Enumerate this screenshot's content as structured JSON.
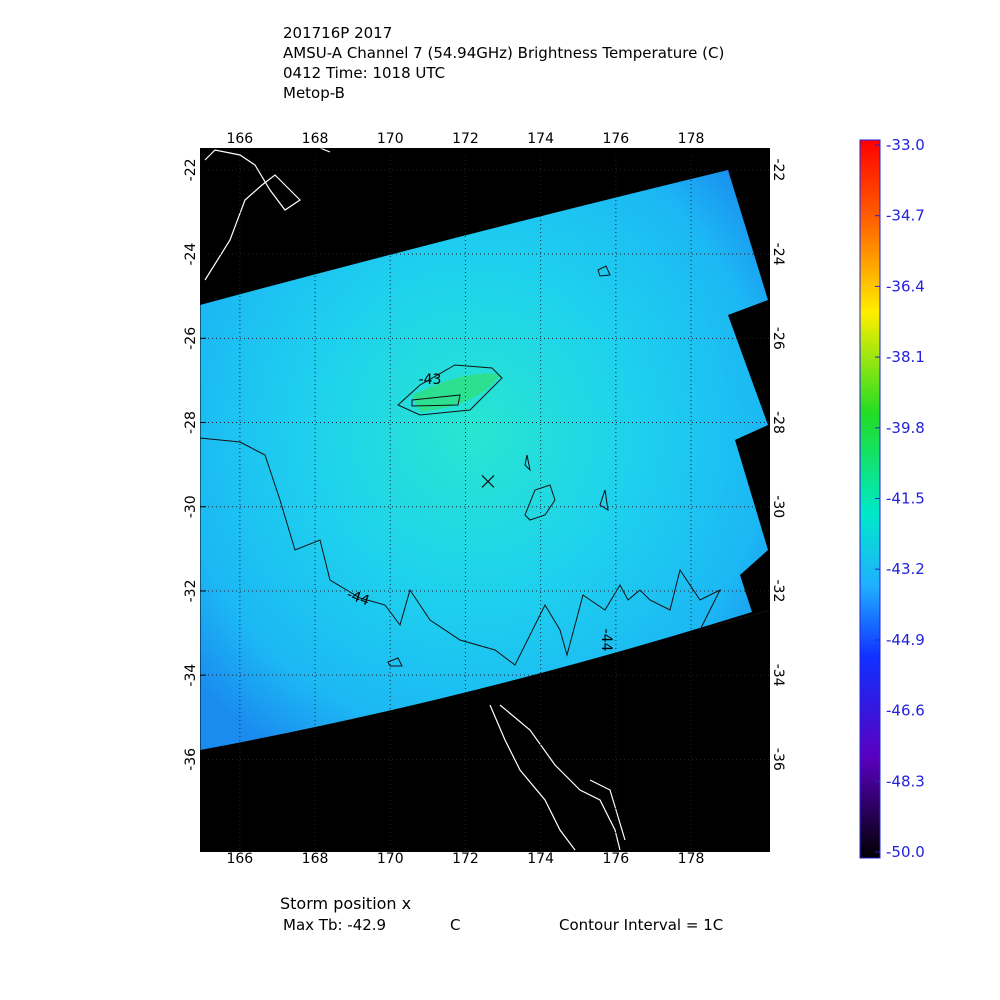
{
  "map": {
    "title_lines": [
      "201716P 2017",
      "AMSU-A Channel 7 (54.94GHz) Brightness Temperature (C)",
      "0412 Time: 1018 UTC",
      "Metop-B"
    ],
    "xlim": [
      164.94,
      180.1
    ],
    "ylim": [
      -38.2,
      -21.48
    ],
    "xticks": [
      166,
      168,
      170,
      172,
      174,
      176,
      178
    ],
    "yticks": [
      -22,
      -24,
      -26,
      -28,
      -30,
      -32,
      -34,
      -36
    ],
    "grid": true,
    "colorbar": {
      "range": [
        -50,
        -33
      ],
      "ticks": [
        {
          "value": -33,
          "label": "-33.0"
        },
        {
          "value": -34.7,
          "label": "-34.7"
        },
        {
          "value": -36.4,
          "label": "-36.4"
        },
        {
          "value": -38.1,
          "label": "-38.1"
        },
        {
          "value": -39.8,
          "label": "-39.8"
        },
        {
          "value": -41.5,
          "label": "-41.5"
        },
        {
          "value": -43.2,
          "label": "-43.2"
        },
        {
          "value": -44.9,
          "label": "-44.9"
        },
        {
          "value": -46.6,
          "label": "-46.6"
        },
        {
          "value": -48.3,
          "label": "-48.3"
        },
        {
          "value": -50,
          "label": "-50.0"
        }
      ]
    },
    "storm_position": {
      "lon": 172.6,
      "lat": -29.4
    },
    "contour_labels": [
      "-43",
      "-44",
      "-44"
    ],
    "footer": {
      "storm": "Storm position x",
      "max_tb": "Max Tb: -42.9",
      "max_tb_unit": "C",
      "interval": "Contour Interval = 1C"
    }
  }
}
